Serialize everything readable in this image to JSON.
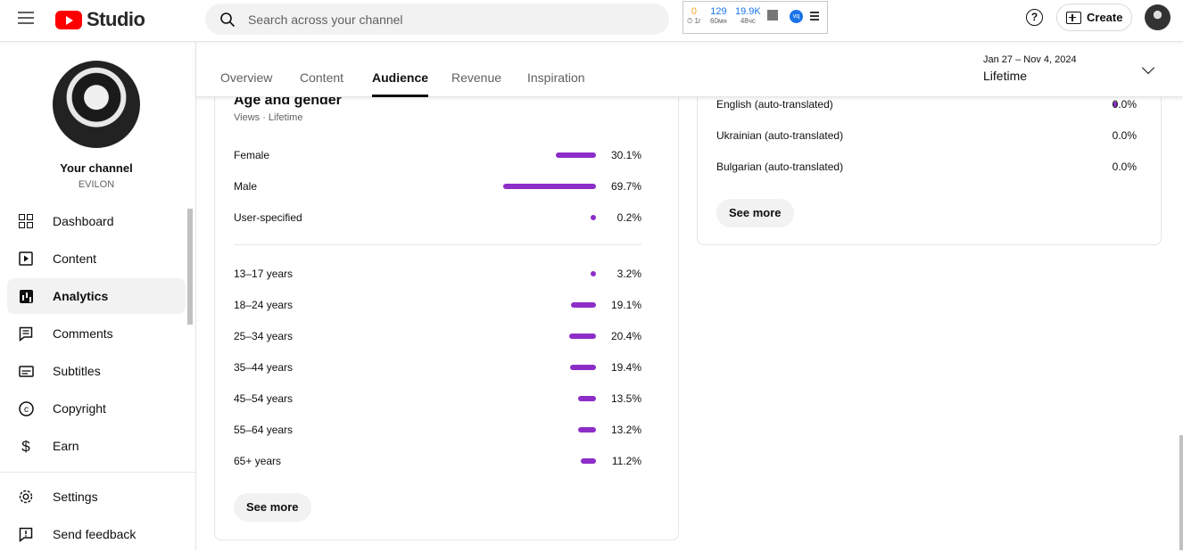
{
  "app": {
    "logo_text": "Studio"
  },
  "search": {
    "placeholder": "Search across your channel"
  },
  "extension": {
    "stats": [
      {
        "value": "0",
        "sub": "1г",
        "color": "#f5a623"
      },
      {
        "value": "129",
        "sub": "60мн",
        "color": "#1a73e8"
      },
      {
        "value": "19.9K",
        "sub": "48чс",
        "color": "#1a73e8"
      }
    ]
  },
  "header": {
    "help_label": "?",
    "create_label": "Create"
  },
  "sidebar": {
    "channel_name": "Your channel",
    "channel_handle": "EVILON",
    "items": [
      {
        "label": "Dashboard",
        "icon": "dashboard-icon"
      },
      {
        "label": "Content",
        "icon": "content-icon"
      },
      {
        "label": "Analytics",
        "icon": "analytics-icon",
        "active": true
      },
      {
        "label": "Comments",
        "icon": "comments-icon"
      },
      {
        "label": "Subtitles",
        "icon": "subtitles-icon"
      },
      {
        "label": "Copyright",
        "icon": "copyright-icon"
      },
      {
        "label": "Earn",
        "icon": "earn-icon"
      }
    ],
    "bottom_items": [
      {
        "label": "Settings",
        "icon": "gear-icon"
      },
      {
        "label": "Send feedback",
        "icon": "feedback-icon"
      }
    ]
  },
  "tabs": [
    {
      "label": "Overview"
    },
    {
      "label": "Content"
    },
    {
      "label": "Audience",
      "active": true
    },
    {
      "label": "Revenue"
    },
    {
      "label": "Inspiration"
    }
  ],
  "date_filter": {
    "range": "Jan 27 – Nov 4, 2024",
    "period": "Lifetime"
  },
  "age_gender": {
    "title": "Age and gender",
    "subtitle": "Views · Lifetime",
    "gender": [
      {
        "label": "Female",
        "percent_label": "30.1%",
        "value": 30.1
      },
      {
        "label": "Male",
        "percent_label": "69.7%",
        "value": 69.7
      },
      {
        "label": "User-specified",
        "percent_label": "0.2%",
        "value": 0.2
      }
    ],
    "age": [
      {
        "label": "13–17 years",
        "percent_label": "3.2%",
        "value": 3.2
      },
      {
        "label": "18–24 years",
        "percent_label": "19.1%",
        "value": 19.1
      },
      {
        "label": "25–34 years",
        "percent_label": "20.4%",
        "value": 20.4
      },
      {
        "label": "35–44 years",
        "percent_label": "19.4%",
        "value": 19.4
      },
      {
        "label": "45–54 years",
        "percent_label": "13.5%",
        "value": 13.5
      },
      {
        "label": "55–64 years",
        "percent_label": "13.2%",
        "value": 13.2
      },
      {
        "label": "65+ years",
        "percent_label": "11.2%",
        "value": 11.2
      }
    ],
    "see_more": "See more"
  },
  "languages": {
    "rows": [
      {
        "label": "English (auto-translated)",
        "percent_label": "0.0%",
        "dot": true
      },
      {
        "label": "Ukrainian (auto-translated)",
        "percent_label": "0.0%",
        "dot": false
      },
      {
        "label": "Bulgarian (auto-translated)",
        "percent_label": "0.0%",
        "dot": false
      }
    ],
    "see_more": "See more"
  },
  "colors": {
    "accent": "#8d2ec8",
    "brand": "#ff0000"
  }
}
